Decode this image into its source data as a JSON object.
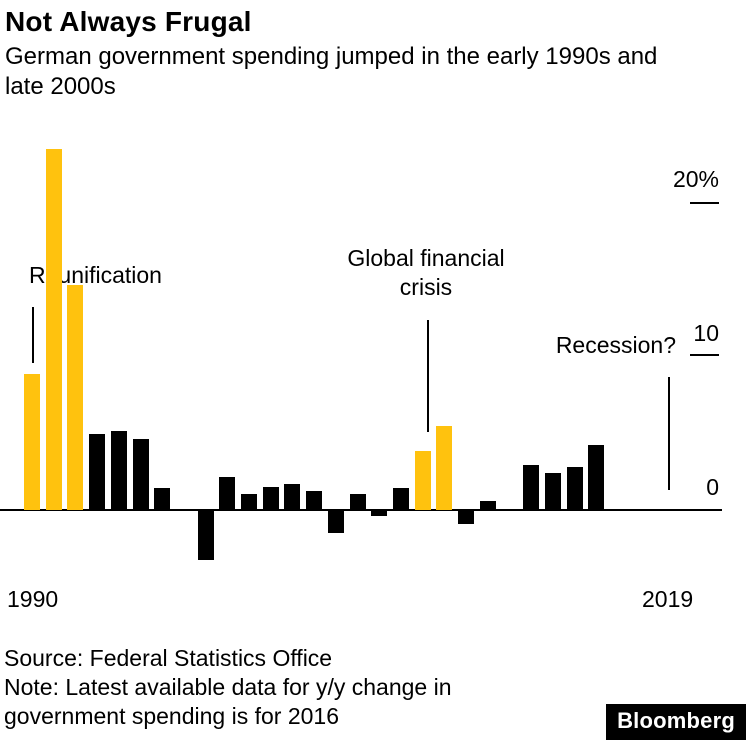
{
  "chart_data": {
    "type": "bar",
    "title": "Not Always Frugal",
    "subtitle": "German government spending jumped in the early 1990s and late 2000s",
    "x": [
      1990,
      1991,
      1992,
      1993,
      1994,
      1995,
      1996,
      1997,
      1998,
      1999,
      2000,
      2001,
      2002,
      2003,
      2004,
      2005,
      2006,
      2007,
      2008,
      2009,
      2010,
      2011,
      2012,
      2013,
      2014,
      2015,
      2016
    ],
    "values": [
      8.8,
      23.3,
      14.5,
      4.9,
      5.1,
      4.6,
      1.4,
      0,
      -3.2,
      2.1,
      1.0,
      1.5,
      1.7,
      1.2,
      -1.5,
      1.0,
      -0.4,
      1.4,
      3.8,
      5.4,
      -0.9,
      0.6,
      0,
      2.9,
      2.4,
      2.8,
      4.2
    ],
    "highlight_years": [
      1990,
      1991,
      1992,
      2008,
      2009
    ],
    "colors": {
      "bar": "#000000",
      "highlight": "#FFC20E"
    },
    "y_ticks": [
      {
        "label": "20%",
        "value": 20
      },
      {
        "label": "10",
        "value": 10
      },
      {
        "label": "0",
        "value": 0
      }
    ],
    "x_axis": {
      "start_label": "1990",
      "end_label": "2019",
      "min": 1990,
      "max": 2019
    },
    "ylim": [
      -4,
      24
    ],
    "grid": false,
    "legend": false,
    "annotations": [
      {
        "id": "reunification",
        "text": "Reunification"
      },
      {
        "id": "global-financial-crisis",
        "text": "Global financial crisis"
      },
      {
        "id": "recession",
        "text": "Recession?"
      }
    ]
  },
  "footer": {
    "source": "Source: Federal Statistics Office",
    "note": "Note: Latest available data for y/y change in government spending is for 2016",
    "logo": "Bloomberg"
  }
}
